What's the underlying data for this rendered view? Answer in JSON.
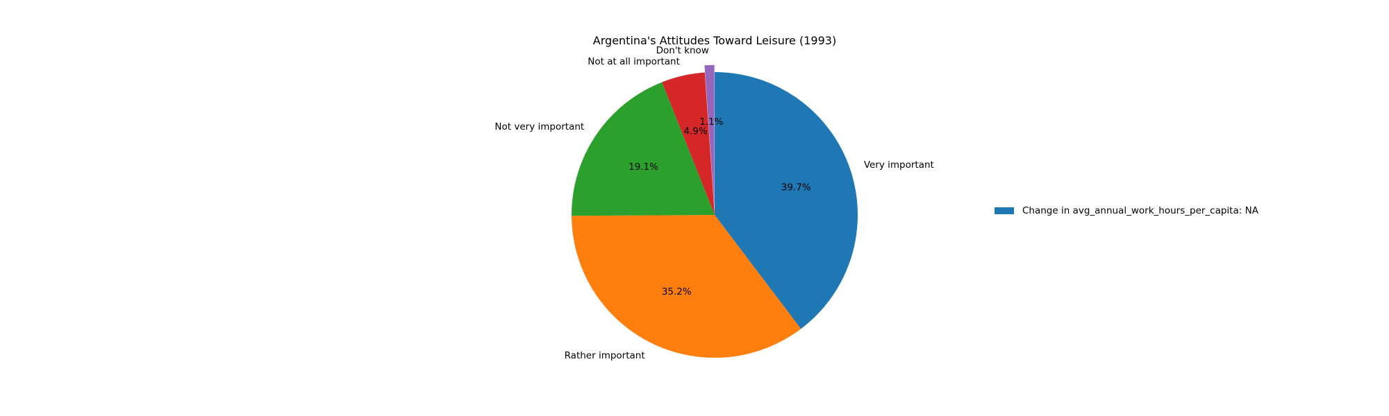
{
  "chart_data": {
    "type": "pie",
    "title": "Argentina's Attitudes Toward Leisure (1993)",
    "start_angle_deg": 90,
    "direction": "clockwise",
    "slices": [
      {
        "label": "Very important",
        "value": 39.7,
        "pct_label": "39.7%",
        "color": "#1f77b4",
        "explode": 0
      },
      {
        "label": "Rather important",
        "value": 35.2,
        "pct_label": "35.2%",
        "color": "#ff7f0e",
        "explode": 0
      },
      {
        "label": "Not very important",
        "value": 19.1,
        "pct_label": "19.1%",
        "color": "#2ca02c",
        "explode": 0
      },
      {
        "label": "Not at all important",
        "value": 4.9,
        "pct_label": "4.9%",
        "color": "#d62728",
        "explode": 0
      },
      {
        "label": "Don't know",
        "value": 1.1,
        "pct_label": "1.1%",
        "color": "#9467bd",
        "explode": 0.05
      }
    ],
    "legend": {
      "placement": "right",
      "entries": [
        {
          "label": "Change in avg_annual_work_hours_per_capita: NA",
          "color": "#1f77b4"
        }
      ]
    }
  }
}
